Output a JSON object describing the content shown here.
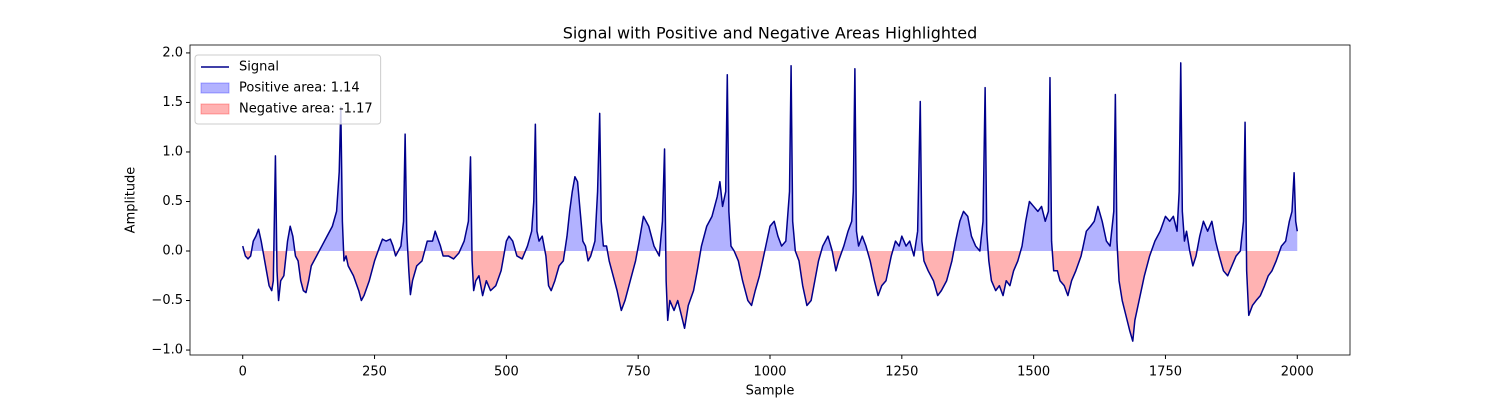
{
  "chart_data": {
    "type": "line",
    "title": "Signal with Positive and Negative Areas Highlighted",
    "xlabel": "Sample",
    "ylabel": "Amplitude",
    "x": [
      0,
      5,
      10,
      15,
      20,
      25,
      30,
      35,
      40,
      45,
      50,
      55,
      58,
      62,
      65,
      68,
      72,
      78,
      85,
      90,
      95,
      100,
      105,
      110,
      115,
      120,
      125,
      130,
      140,
      150,
      160,
      170,
      178,
      183,
      186,
      189,
      192,
      196,
      200,
      210,
      220,
      225,
      230,
      240,
      250,
      260,
      265,
      272,
      280,
      285,
      290,
      300,
      305,
      308,
      311,
      315,
      318,
      322,
      330,
      340,
      350,
      360,
      365,
      375,
      380,
      390,
      400,
      410,
      420,
      428,
      432,
      435,
      438,
      442,
      448,
      455,
      462,
      470,
      480,
      490,
      495,
      500,
      505,
      512,
      520,
      530,
      540,
      548,
      552,
      555,
      558,
      562,
      568,
      575,
      580,
      585,
      592,
      600,
      608,
      615,
      620,
      625,
      630,
      635,
      640,
      645,
      650,
      655,
      660,
      668,
      673,
      677,
      680,
      684,
      690,
      695,
      700,
      710,
      718,
      725,
      735,
      745,
      752,
      760,
      770,
      780,
      790,
      796,
      800,
      803,
      806,
      810,
      818,
      825,
      832,
      838,
      845,
      855,
      862,
      870,
      880,
      890,
      900,
      905,
      910,
      916,
      919,
      922,
      926,
      932,
      940,
      948,
      958,
      965,
      972,
      980,
      990,
      1000,
      1008,
      1015,
      1022,
      1030,
      1037,
      1040,
      1043,
      1048,
      1055,
      1062,
      1070,
      1078,
      1085,
      1092,
      1100,
      1110,
      1118,
      1125,
      1130,
      1140,
      1148,
      1155,
      1158,
      1161,
      1164,
      1168,
      1175,
      1182,
      1190,
      1198,
      1205,
      1212,
      1220,
      1230,
      1238,
      1245,
      1250,
      1258,
      1265,
      1273,
      1280,
      1285,
      1288,
      1292,
      1300,
      1310,
      1318,
      1325,
      1335,
      1345,
      1352,
      1360,
      1367,
      1375,
      1382,
      1390,
      1398,
      1404,
      1408,
      1411,
      1415,
      1420,
      1428,
      1435,
      1442,
      1448,
      1455,
      1462,
      1470,
      1478,
      1485,
      1492,
      1500,
      1508,
      1515,
      1522,
      1528,
      1531,
      1534,
      1538,
      1545,
      1550,
      1558,
      1565,
      1572,
      1580,
      1590,
      1600,
      1608,
      1615,
      1622,
      1630,
      1638,
      1645,
      1652,
      1655,
      1658,
      1662,
      1668,
      1675,
      1682,
      1688,
      1692,
      1700,
      1710,
      1720,
      1730,
      1740,
      1750,
      1758,
      1765,
      1772,
      1776,
      1779,
      1782,
      1786,
      1790,
      1796,
      1802,
      1808,
      1815,
      1822,
      1830,
      1838,
      1845,
      1852,
      1860,
      1868,
      1876,
      1884,
      1892,
      1898,
      1901,
      1904,
      1908,
      1915,
      1922,
      1930,
      1938,
      1945,
      1952,
      1960,
      1970,
      1978,
      1985,
      1990,
      1994,
      1997,
      2000
    ],
    "series": [
      {
        "name": "Signal",
        "color": "#00008b",
        "values": [
          0.05,
          -0.05,
          -0.08,
          -0.05,
          0.1,
          0.15,
          0.22,
          0.1,
          -0.05,
          -0.2,
          -0.35,
          -0.4,
          -0.3,
          0.96,
          -0.2,
          -0.5,
          -0.3,
          -0.25,
          0.1,
          0.25,
          0.15,
          -0.05,
          -0.1,
          -0.3,
          -0.4,
          -0.42,
          -0.3,
          -0.15,
          -0.05,
          0.05,
          0.15,
          0.25,
          0.4,
          0.8,
          1.45,
          0.3,
          -0.1,
          -0.05,
          -0.15,
          -0.25,
          -0.4,
          -0.5,
          -0.45,
          -0.3,
          -0.1,
          0.05,
          0.12,
          0.1,
          0.12,
          0.05,
          -0.05,
          0.05,
          0.3,
          1.18,
          0.2,
          -0.2,
          -0.44,
          -0.3,
          -0.15,
          -0.1,
          0.1,
          0.1,
          0.2,
          0.05,
          -0.05,
          -0.05,
          -0.08,
          -0.02,
          0.1,
          0.3,
          0.95,
          -0.1,
          -0.4,
          -0.3,
          -0.25,
          -0.45,
          -0.3,
          -0.4,
          -0.35,
          -0.2,
          -0.05,
          0.1,
          0.15,
          0.1,
          -0.05,
          -0.08,
          0.05,
          0.2,
          0.5,
          1.28,
          0.2,
          0.1,
          0.15,
          -0.05,
          -0.35,
          -0.4,
          -0.3,
          -0.15,
          -0.1,
          0.15,
          0.4,
          0.6,
          0.75,
          0.7,
          0.4,
          0.1,
          0.05,
          -0.1,
          -0.05,
          0.1,
          0.6,
          1.39,
          0.3,
          0.05,
          0.05,
          -0.1,
          -0.2,
          -0.4,
          -0.6,
          -0.5,
          -0.3,
          -0.1,
          0.1,
          0.35,
          0.25,
          0.05,
          -0.05,
          0.3,
          1.03,
          -0.3,
          -0.7,
          -0.5,
          -0.6,
          -0.5,
          -0.65,
          -0.78,
          -0.55,
          -0.4,
          -0.2,
          0.05,
          0.25,
          0.35,
          0.55,
          0.7,
          0.45,
          0.6,
          1.78,
          0.4,
          0.05,
          0,
          -0.1,
          -0.3,
          -0.5,
          -0.55,
          -0.4,
          -0.25,
          0,
          0.25,
          0.3,
          0.15,
          0.05,
          0.1,
          0.6,
          1.87,
          0.3,
          0,
          -0.1,
          -0.35,
          -0.55,
          -0.5,
          -0.3,
          -0.1,
          0.05,
          0.15,
          0,
          -0.2,
          -0.1,
          0.05,
          0.2,
          0.3,
          0.6,
          1.84,
          0.2,
          0.05,
          0.15,
          0.05,
          -0.1,
          -0.3,
          -0.45,
          -0.35,
          -0.3,
          -0.05,
          0.1,
          0.05,
          0.15,
          0.05,
          0.1,
          -0.05,
          0.2,
          1.51,
          0.1,
          -0.1,
          -0.2,
          -0.3,
          -0.45,
          -0.4,
          -0.3,
          -0.1,
          0.1,
          0.3,
          0.4,
          0.35,
          0.15,
          0.05,
          0,
          0.3,
          1.65,
          0.2,
          -0.1,
          -0.3,
          -0.4,
          -0.35,
          -0.45,
          -0.3,
          -0.35,
          -0.2,
          -0.1,
          0.05,
          0.3,
          0.5,
          0.45,
          0.4,
          0.45,
          0.3,
          0.4,
          1.75,
          0.1,
          -0.2,
          -0.2,
          -0.3,
          -0.35,
          -0.45,
          -0.3,
          -0.2,
          -0.05,
          0.2,
          0.25,
          0.3,
          0.45,
          0.3,
          0.1,
          0.05,
          0.4,
          1.58,
          0.1,
          -0.3,
          -0.5,
          -0.65,
          -0.8,
          -0.91,
          -0.7,
          -0.5,
          -0.25,
          -0.05,
          0.1,
          0.2,
          0.35,
          0.3,
          0.35,
          0.2,
          0.6,
          1.9,
          0.4,
          0.1,
          0.2,
          0,
          -0.15,
          -0.05,
          0.15,
          0.3,
          0.2,
          0.3,
          0.1,
          -0.05,
          -0.2,
          -0.25,
          -0.15,
          -0.05,
          0,
          0.3,
          1.3,
          -0.2,
          -0.65,
          -0.55,
          -0.5,
          -0.45,
          -0.35,
          -0.25,
          -0.2,
          -0.1,
          0.05,
          0.1,
          0.3,
          0.4,
          0.79,
          0.3,
          0.2
        ]
      }
    ],
    "areas": [
      {
        "name": "Positive area: 1.14",
        "color": "#0000ff"
      },
      {
        "name": "Negative area: -1.17",
        "color": "#ff0000"
      }
    ],
    "xlim": [
      -100,
      2100
    ],
    "ylim": [
      -1.05,
      2.08
    ],
    "xticks": [
      0,
      250,
      500,
      750,
      1000,
      1250,
      1500,
      1750,
      2000
    ],
    "yticks": [
      {
        "value": -1,
        "label": "−1.0"
      },
      {
        "value": -0.5,
        "label": "−0.5"
      },
      {
        "value": 0,
        "label": "0.0"
      },
      {
        "value": 0.5,
        "label": "0.5"
      },
      {
        "value": 1,
        "label": "1.0"
      },
      {
        "value": 1.5,
        "label": "1.5"
      },
      {
        "value": 2,
        "label": "2.0"
      }
    ],
    "legend": "upper left"
  }
}
